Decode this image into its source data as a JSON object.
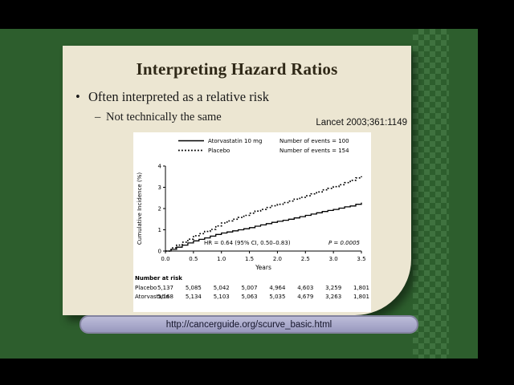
{
  "slide": {
    "title": "Interpreting Hazard Ratios",
    "bullet_marker": "•",
    "bullet_text": "Often interpreted as a relative risk",
    "sub_marker": "–",
    "sub_text": "Not technically the same",
    "citation": "Lancet 2003;361:1149",
    "footer_url": "http://cancerguide.org/scurve_basic.html"
  },
  "colors": {
    "background_green": "#2d5e2d",
    "pattern_green": "#3f723f",
    "slide_cream": "#ece6d2",
    "banner_fill": "#a9a9cb",
    "banner_border": "#83839f",
    "title_text": "#2f2817",
    "body_text": "#1a1a1a"
  },
  "chart_data": {
    "type": "line",
    "title": "",
    "xlabel": "Years",
    "ylabel": "Cumulative Incidence (%)",
    "xlim": [
      0,
      3.5
    ],
    "ylim": [
      0,
      4
    ],
    "x_ticks": [
      "0.0",
      "0.5",
      "1.0",
      "1.5",
      "2.0",
      "2.5",
      "3.0",
      "3.5"
    ],
    "y_ticks": [
      "0",
      "1",
      "2",
      "3",
      "4"
    ],
    "grid": false,
    "legend_position": "top-left",
    "legend": [
      {
        "name": "Atorvastatin 10 mg",
        "style": "solid",
        "events_label": "Number of events = 100"
      },
      {
        "name": "Placebo",
        "style": "dotted",
        "events_label": "Number of events = 154"
      }
    ],
    "series": [
      {
        "name": "Atorvastatin 10 mg",
        "style": "solid",
        "x": [
          0,
          0.1,
          0.2,
          0.3,
          0.4,
          0.5,
          0.6,
          0.7,
          0.8,
          0.9,
          1.0,
          1.1,
          1.2,
          1.3,
          1.4,
          1.5,
          1.6,
          1.7,
          1.8,
          1.9,
          2.0,
          2.1,
          2.2,
          2.3,
          2.4,
          2.5,
          2.6,
          2.7,
          2.8,
          2.9,
          3.0,
          3.1,
          3.2,
          3.3,
          3.4,
          3.5
        ],
        "y": [
          0,
          0.08,
          0.18,
          0.28,
          0.38,
          0.48,
          0.55,
          0.62,
          0.7,
          0.78,
          0.85,
          0.9,
          0.95,
          1.0,
          1.05,
          1.1,
          1.17,
          1.23,
          1.29,
          1.35,
          1.4,
          1.45,
          1.5,
          1.56,
          1.62,
          1.68,
          1.74,
          1.8,
          1.86,
          1.91,
          1.96,
          2.02,
          2.08,
          2.12,
          2.2,
          2.28
        ]
      },
      {
        "name": "Placebo",
        "style": "dotted",
        "x": [
          0,
          0.1,
          0.2,
          0.3,
          0.4,
          0.5,
          0.6,
          0.7,
          0.8,
          0.9,
          1.0,
          1.1,
          1.2,
          1.3,
          1.4,
          1.5,
          1.6,
          1.7,
          1.8,
          1.9,
          2.0,
          2.1,
          2.2,
          2.3,
          2.4,
          2.5,
          2.6,
          2.7,
          2.8,
          2.9,
          3.0,
          3.1,
          3.2,
          3.3,
          3.4,
          3.5
        ],
        "y": [
          0,
          0.15,
          0.28,
          0.42,
          0.56,
          0.72,
          0.82,
          0.92,
          1.02,
          1.18,
          1.32,
          1.42,
          1.5,
          1.58,
          1.68,
          1.78,
          1.88,
          1.96,
          2.05,
          2.13,
          2.2,
          2.28,
          2.35,
          2.44,
          2.53,
          2.6,
          2.69,
          2.78,
          2.88,
          2.95,
          3.03,
          3.12,
          3.22,
          3.33,
          3.44,
          3.52
        ]
      }
    ],
    "annotation_hr": "HR = 0.64 (95% CI, 0.50–0.83)",
    "annotation_p": "P = 0.0005",
    "number_at_risk": {
      "label": "Number at risk",
      "rows": [
        {
          "name": "Placebo",
          "values": [
            "5,137",
            "5,085",
            "5,042",
            "5,007",
            "4,964",
            "4,603",
            "3,259",
            "1,801"
          ]
        },
        {
          "name": "Atorvastatin",
          "values": [
            "5,168",
            "5,134",
            "5,103",
            "5,063",
            "5,035",
            "4,679",
            "3,263",
            "1,801"
          ]
        }
      ]
    }
  }
}
